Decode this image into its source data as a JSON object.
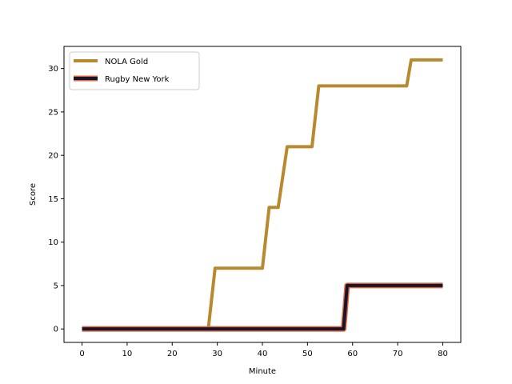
{
  "chart_data": {
    "type": "line",
    "xlabel": "Minute",
    "ylabel": "Score",
    "xlim": [
      -4,
      84
    ],
    "ylim": [
      -1.55,
      32.55
    ],
    "xticks": [
      0,
      10,
      20,
      30,
      40,
      50,
      60,
      70,
      80
    ],
    "yticks": [
      0,
      5,
      10,
      15,
      20,
      25,
      30
    ],
    "grid": false,
    "legend_position": "top-left",
    "series": [
      {
        "name": "NOLA Gold",
        "color": "#b8892e",
        "outline": null,
        "x": [
          0,
          28,
          29.5,
          40,
          41.5,
          43.5,
          45.5,
          51,
          52.5,
          72,
          73,
          80
        ],
        "y": [
          0,
          0,
          7,
          7,
          14,
          14,
          21,
          21,
          28,
          28,
          31,
          31
        ]
      },
      {
        "name": "Rugby New York",
        "color": "#15152e",
        "outline": "#e0653a",
        "x": [
          0,
          58,
          58.8,
          80
        ],
        "y": [
          0,
          0,
          5,
          5
        ]
      }
    ]
  }
}
